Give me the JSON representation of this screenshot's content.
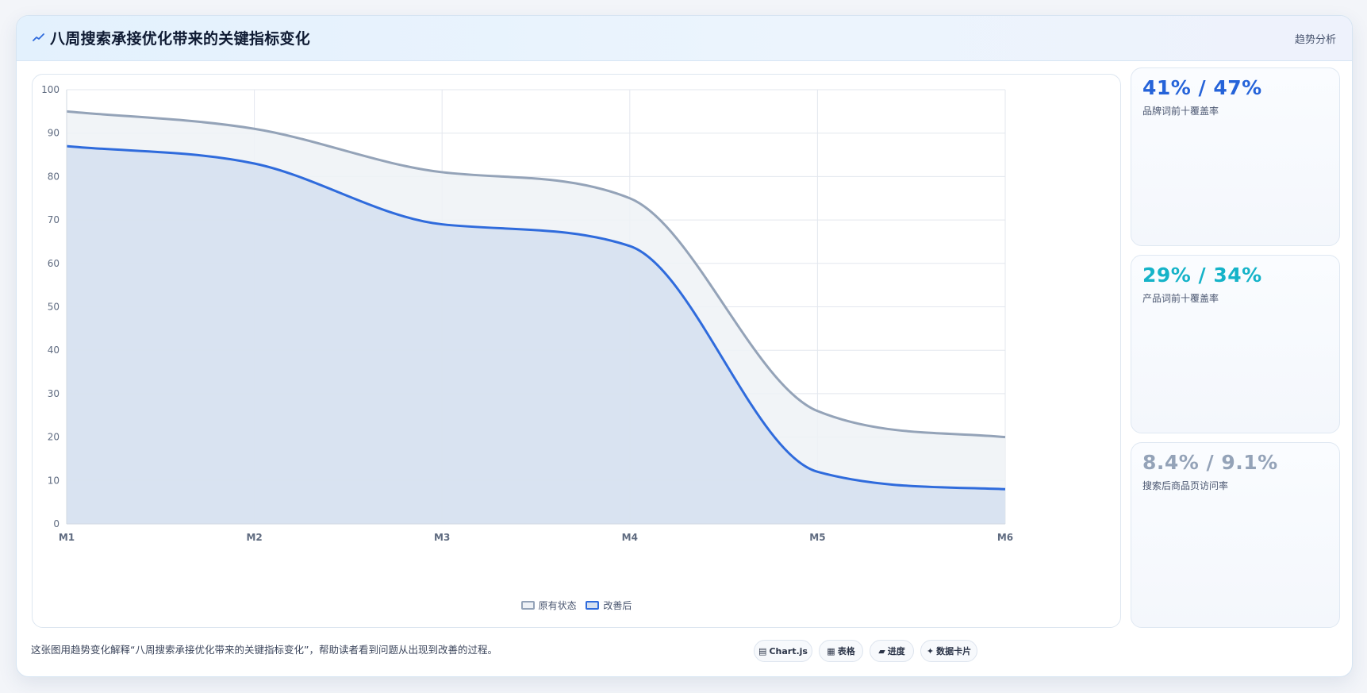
{
  "header": {
    "icon": "trend-line-icon",
    "title": "八周搜索承接优化带来的关键指标变化",
    "tag": "趋势分析"
  },
  "kpis": [
    {
      "value": "41% / 47%",
      "label": "品牌词前十覆盖率",
      "color": "#2563d9"
    },
    {
      "value": "29% / 34%",
      "label": "产品词前十覆盖率",
      "color": "#15b3c8"
    },
    {
      "value": "8.4% / 9.1%",
      "label": "搜索后商品页访问率",
      "color": "#94a3b8"
    }
  ],
  "footer": {
    "caption": "这张图用趋势变化解释“八周搜索承接优化带来的关键指标变化”，帮助读者看到问题从出现到改善的过程。",
    "chips": [
      {
        "icon": "chart-icon",
        "label": "Chart.js"
      },
      {
        "icon": "table-icon",
        "label": "表格"
      },
      {
        "icon": "progress-icon",
        "label": "进度"
      },
      {
        "icon": "sparkle-icon",
        "label": "数据卡片"
      }
    ]
  },
  "chart_data": {
    "type": "area",
    "categories": [
      "M1",
      "M2",
      "M3",
      "M4",
      "M5",
      "M6"
    ],
    "series": [
      {
        "name": "原有状态",
        "values": [
          95,
          91,
          81,
          75,
          26,
          20
        ],
        "color": "#94a3b8",
        "fill": "#eff2f6"
      },
      {
        "name": "改善后",
        "values": [
          87,
          83,
          69,
          64,
          12,
          8
        ],
        "color": "#2f6bdc",
        "fill": "#d6e1f0"
      }
    ],
    "ylim": [
      0,
      100
    ],
    "yticks": [
      0,
      10,
      20,
      30,
      40,
      50,
      60,
      70,
      80,
      90,
      100
    ],
    "grid": true,
    "legend": "bottom",
    "title": "",
    "xlabel": "",
    "ylabel": ""
  }
}
